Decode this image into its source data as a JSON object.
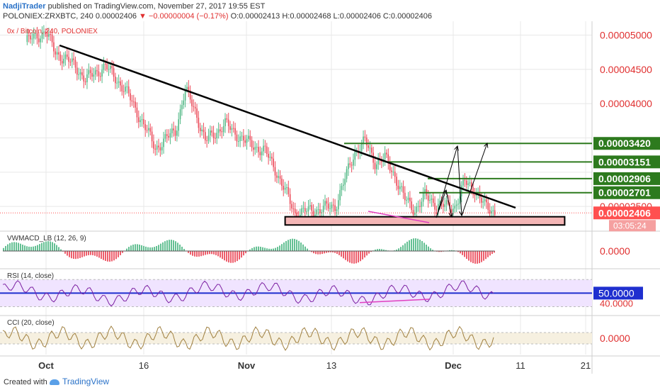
{
  "header": {
    "author": "NadjiTrader",
    "published": " published on TradingView.com, November 27, 2017 19:55 EST",
    "symbol": "POLONIEX:ZRXBTC, 240",
    "last": "0.00002406",
    "change": "▼ −0.00000004 (−0.17%)",
    "open": "O:0.00002413",
    "high": "H:0.00002468",
    "low": "L:0.00002406",
    "close": "C:0.00002406"
  },
  "footer": {
    "made_with": "Created with",
    "brand": "TradingView"
  },
  "chart_data": {
    "type": "candlestick",
    "main_label": "0x / Bitcoin, 240, POLONIEX",
    "xticks": [
      "Oct",
      "16",
      "Nov",
      "13",
      "Dec",
      "11",
      "21"
    ],
    "yticks": [
      {
        "label": "0.00005000",
        "value": 5.0
      },
      {
        "label": "0.00004500",
        "value": 4.5
      },
      {
        "label": "0.00004000",
        "value": 4.0
      },
      {
        "label": "0.00002500",
        "value": 2.5
      }
    ],
    "ylim": [
      2.15,
      5.15
    ],
    "y_unit_note": "price in BTC x 1e-5",
    "price_series_approx": [
      {
        "day": 0,
        "price": 4.9
      },
      {
        "day": 2,
        "price": 5.05
      },
      {
        "day": 3,
        "price": 4.75
      },
      {
        "day": 5,
        "price": 4.55
      },
      {
        "day": 6,
        "price": 4.35
      },
      {
        "day": 8,
        "price": 4.55
      },
      {
        "day": 10,
        "price": 4.2
      },
      {
        "day": 12,
        "price": 3.65
      },
      {
        "day": 13,
        "price": 3.35
      },
      {
        "day": 15,
        "price": 3.6
      },
      {
        "day": 16,
        "price": 4.2
      },
      {
        "day": 17,
        "price": 3.9
      },
      {
        "day": 18,
        "price": 3.45
      },
      {
        "day": 20,
        "price": 3.7
      },
      {
        "day": 22,
        "price": 3.45
      },
      {
        "day": 24,
        "price": 3.3
      },
      {
        "day": 25,
        "price": 3.05
      },
      {
        "day": 27,
        "price": 2.4
      },
      {
        "day": 29,
        "price": 2.45
      },
      {
        "day": 31,
        "price": 2.5
      },
      {
        "day": 33,
        "price": 3.3
      },
      {
        "day": 34,
        "price": 3.45
      },
      {
        "day": 35,
        "price": 3.15
      },
      {
        "day": 36,
        "price": 3.2
      },
      {
        "day": 37,
        "price": 2.95
      },
      {
        "day": 38,
        "price": 2.6
      },
      {
        "day": 39,
        "price": 2.45
      },
      {
        "day": 40,
        "price": 2.65
      },
      {
        "day": 41,
        "price": 2.55
      },
      {
        "day": 42,
        "price": 2.5
      },
      {
        "day": 43,
        "price": 2.5
      },
      {
        "day": 44,
        "price": 2.85
      },
      {
        "day": 45,
        "price": 2.75
      },
      {
        "day": 46,
        "price": 2.5
      },
      {
        "day": 47,
        "price": 2.42
      }
    ],
    "annotations": {
      "trendline": {
        "from": {
          "day": 2,
          "price": 4.85
        },
        "to": {
          "day": 55,
          "price": 2.6
        }
      },
      "support_box": {
        "day_from": 26,
        "day_to": 54,
        "price_from": 2.23,
        "price_to": 2.35
      },
      "resistance_levels": [
        {
          "label": "0.00003420",
          "value": 3.42
        },
        {
          "label": "0.00003151",
          "value": 3.15
        },
        {
          "label": "0.00002906",
          "value": 2.906
        },
        {
          "label": "0.00002701",
          "value": 2.701
        }
      ],
      "last_price": {
        "label": "0.00002406",
        "value": 2.406
      },
      "countdown": "03:05:24"
    },
    "indicators": [
      {
        "name": "VWMACD_LB (12, 26, 9)",
        "axis_label": "0.0000"
      },
      {
        "name": "RSI (14, close)",
        "level_label": "50.0000",
        "axis_label": "40.0000",
        "band": [
          30,
          70
        ]
      },
      {
        "name": "CCI (20, close)",
        "axis_label": "0.0000"
      }
    ]
  },
  "colors": {
    "up": "#53b987",
    "down": "#eb4d5c",
    "trend": "#000000",
    "level": "#2d7a1e",
    "box_fill": "#f4b6b6",
    "rsi_line": "#7b1fa2",
    "rsi_band": "#f0e4ff",
    "rsi_50": "#1f2fcf",
    "diverge": "#e040c0",
    "cci": "#a08040",
    "price_tag": "#ff5050"
  }
}
